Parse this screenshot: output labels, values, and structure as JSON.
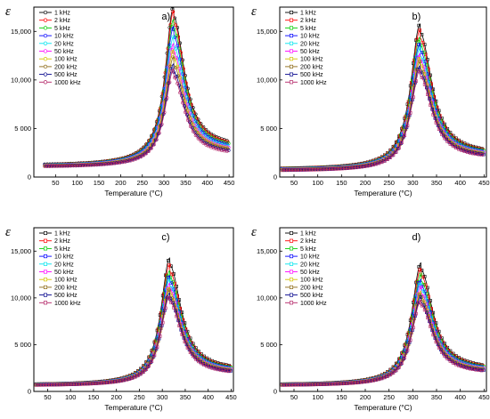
{
  "figure": {
    "series_colors": [
      "#000000",
      "#ff0000",
      "#00cc00",
      "#0000ff",
      "#00e5ee",
      "#ff00ff",
      "#d4c400",
      "#8b6914",
      "#00008b",
      "#b22265"
    ]
  },
  "chart_data": [
    {
      "type": "line",
      "panel_label": "a)",
      "ylabel": "ε",
      "xlabel": "Temperature (°C)",
      "xlim": [
        0,
        460
      ],
      "ylim": [
        0,
        17500
      ],
      "xticks": [
        "50",
        "100",
        "150",
        "200",
        "250",
        "300",
        "350",
        "400",
        "450"
      ],
      "yticks": [
        "0",
        "5 000",
        "10,000",
        "15,000"
      ],
      "legend_position": "top-left",
      "series": [
        {
          "name": "1 kHz",
          "peak_x": 322,
          "peak_y": 16500,
          "start_y": 1200,
          "end_y": 3000
        },
        {
          "name": "2 kHz",
          "peak_x": 322,
          "peak_y": 16000,
          "start_y": 1180,
          "end_y": 2900
        },
        {
          "name": "5 kHz",
          "peak_x": 322,
          "peak_y": 15200,
          "start_y": 1160,
          "end_y": 2800
        },
        {
          "name": "10 kHz",
          "peak_x": 322,
          "peak_y": 14500,
          "start_y": 1140,
          "end_y": 2700
        },
        {
          "name": "20 kHz",
          "peak_x": 322,
          "peak_y": 13500,
          "start_y": 1120,
          "end_y": 2600
        },
        {
          "name": "50 kHz",
          "peak_x": 322,
          "peak_y": 12800,
          "start_y": 1100,
          "end_y": 2500
        },
        {
          "name": "100 kHz",
          "peak_x": 322,
          "peak_y": 12200,
          "start_y": 1080,
          "end_y": 2450
        },
        {
          "name": "200 kHz",
          "peak_x": 322,
          "peak_y": 11500,
          "start_y": 1060,
          "end_y": 2400
        },
        {
          "name": "500 kHz",
          "peak_x": 322,
          "peak_y": 10800,
          "start_y": 1040,
          "end_y": 2300
        },
        {
          "name": "1000 kHz",
          "peak_x": 322,
          "peak_y": 10300,
          "start_y": 1020,
          "end_y": 2200
        }
      ]
    },
    {
      "type": "line",
      "panel_label": "b)",
      "ylabel": "ε",
      "xlabel": "Temperature (°C)",
      "xlim": [
        20,
        455
      ],
      "ylim": [
        0,
        17500
      ],
      "xticks": [
        "50",
        "100",
        "150",
        "200",
        "250",
        "300",
        "350",
        "400",
        "450"
      ],
      "yticks": [
        "0",
        "5 000",
        "10,000",
        "15,000"
      ],
      "legend_position": "top-left",
      "series": [
        {
          "name": "1 kHz",
          "peak_x": 315,
          "peak_y": 14900,
          "start_y": 800,
          "end_y": 2300
        },
        {
          "name": "2 kHz",
          "peak_x": 315,
          "peak_y": 14300,
          "start_y": 780,
          "end_y": 2250
        },
        {
          "name": "5 kHz",
          "peak_x": 315,
          "peak_y": 13600,
          "start_y": 760,
          "end_y": 2200
        },
        {
          "name": "10 kHz",
          "peak_x": 315,
          "peak_y": 13000,
          "start_y": 740,
          "end_y": 2150
        },
        {
          "name": "20 kHz",
          "peak_x": 315,
          "peak_y": 12500,
          "start_y": 720,
          "end_y": 2100
        },
        {
          "name": "50 kHz",
          "peak_x": 315,
          "peak_y": 12000,
          "start_y": 700,
          "end_y": 2050
        },
        {
          "name": "100 kHz",
          "peak_x": 315,
          "peak_y": 11600,
          "start_y": 680,
          "end_y": 2000
        },
        {
          "name": "200 kHz",
          "peak_x": 315,
          "peak_y": 11200,
          "start_y": 660,
          "end_y": 1950
        },
        {
          "name": "500 kHz",
          "peak_x": 315,
          "peak_y": 10800,
          "start_y": 640,
          "end_y": 1900
        },
        {
          "name": "1000 kHz",
          "peak_x": 315,
          "peak_y": 10400,
          "start_y": 620,
          "end_y": 1850
        }
      ]
    },
    {
      "type": "line",
      "panel_label": "c)",
      "ylabel": "ε",
      "xlabel": "Temperature (°C)",
      "xlim": [
        20,
        455
      ],
      "ylim": [
        0,
        17500
      ],
      "xticks": [
        "50",
        "100",
        "150",
        "200",
        "250",
        "300",
        "350",
        "400",
        "450"
      ],
      "yticks": [
        "0",
        "5 000",
        "10,000",
        "15,000"
      ],
      "legend_position": "top-left",
      "series": [
        {
          "name": "1 kHz",
          "peak_x": 316,
          "peak_y": 13500,
          "start_y": 700,
          "end_y": 2200
        },
        {
          "name": "2 kHz",
          "peak_x": 316,
          "peak_y": 12800,
          "start_y": 690,
          "end_y": 2150
        },
        {
          "name": "5 kHz",
          "peak_x": 316,
          "peak_y": 12200,
          "start_y": 680,
          "end_y": 2100
        },
        {
          "name": "10 kHz",
          "peak_x": 316,
          "peak_y": 11700,
          "start_y": 670,
          "end_y": 2050
        },
        {
          "name": "20 kHz",
          "peak_x": 316,
          "peak_y": 11300,
          "start_y": 660,
          "end_y": 2000
        },
        {
          "name": "50 kHz",
          "peak_x": 316,
          "peak_y": 10900,
          "start_y": 650,
          "end_y": 1950
        },
        {
          "name": "100 kHz",
          "peak_x": 316,
          "peak_y": 10500,
          "start_y": 640,
          "end_y": 1900
        },
        {
          "name": "200 kHz",
          "peak_x": 316,
          "peak_y": 10200,
          "start_y": 630,
          "end_y": 1850
        },
        {
          "name": "500 kHz",
          "peak_x": 316,
          "peak_y": 9900,
          "start_y": 620,
          "end_y": 1800
        },
        {
          "name": "1000 kHz",
          "peak_x": 316,
          "peak_y": 9600,
          "start_y": 610,
          "end_y": 1750
        }
      ]
    },
    {
      "type": "line",
      "panel_label": "d)",
      "ylabel": "ε",
      "xlabel": "Temperature (°C)",
      "xlim": [
        20,
        455
      ],
      "ylim": [
        0,
        17500
      ],
      "xticks": [
        "50",
        "100",
        "150",
        "200",
        "250",
        "300",
        "350",
        "400",
        "450"
      ],
      "yticks": [
        "0",
        "5 000",
        "10,000",
        "15,000"
      ],
      "legend_position": "top-left",
      "series": [
        {
          "name": "1 kHz",
          "peak_x": 317,
          "peak_y": 13000,
          "start_y": 700,
          "end_y": 2300
        },
        {
          "name": "2 kHz",
          "peak_x": 317,
          "peak_y": 12400,
          "start_y": 690,
          "end_y": 2250
        },
        {
          "name": "5 kHz",
          "peak_x": 317,
          "peak_y": 11800,
          "start_y": 680,
          "end_y": 2200
        },
        {
          "name": "10 kHz",
          "peak_x": 317,
          "peak_y": 11300,
          "start_y": 670,
          "end_y": 2150
        },
        {
          "name": "20 kHz",
          "peak_x": 317,
          "peak_y": 10900,
          "start_y": 660,
          "end_y": 2100
        },
        {
          "name": "50 kHz",
          "peak_x": 317,
          "peak_y": 10500,
          "start_y": 650,
          "end_y": 2050
        },
        {
          "name": "100 kHz",
          "peak_x": 317,
          "peak_y": 10100,
          "start_y": 640,
          "end_y": 2000
        },
        {
          "name": "200 kHz",
          "peak_x": 317,
          "peak_y": 9800,
          "start_y": 630,
          "end_y": 1950
        },
        {
          "name": "500 kHz",
          "peak_x": 317,
          "peak_y": 9500,
          "start_y": 620,
          "end_y": 1900
        },
        {
          "name": "1000 kHz",
          "peak_x": 317,
          "peak_y": 9200,
          "start_y": 610,
          "end_y": 1850
        }
      ]
    }
  ]
}
